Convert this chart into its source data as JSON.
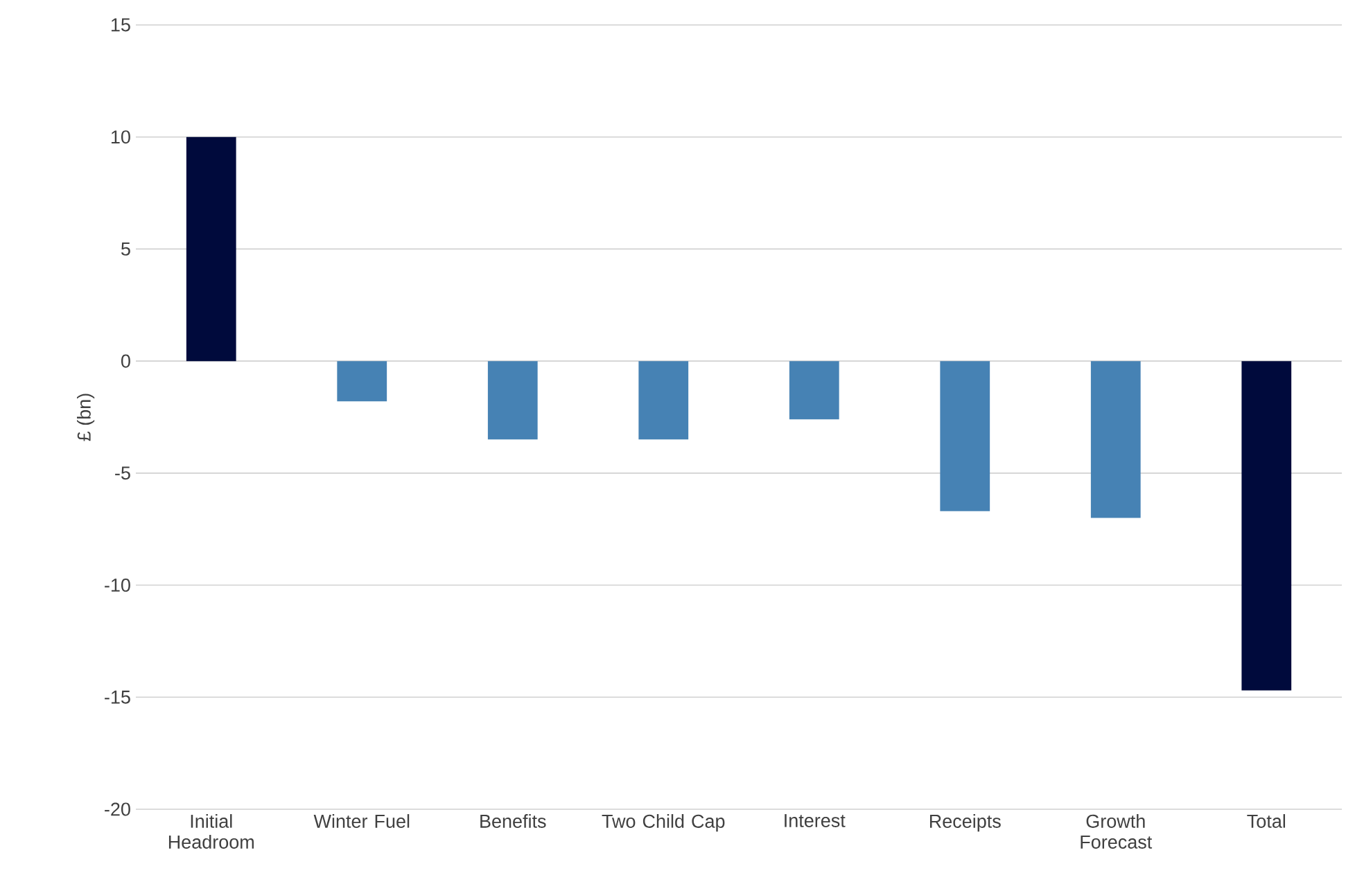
{
  "chart_data": {
    "type": "bar",
    "ylabel": "£ (bn)",
    "categories": [
      "Initial Headroom",
      "Winter Fuel",
      "Benefits",
      "Two Child Cap",
      "Interest",
      "Receipts",
      "Growth Forecast",
      "Total"
    ],
    "values": [
      10,
      -1.8,
      -3.5,
      -3.5,
      -2.6,
      -6.7,
      -7.0,
      -14.7
    ],
    "colors": [
      "#000a3c",
      "#4682b4",
      "#4682b4",
      "#4682b4",
      "#4682b4",
      "#4682b4",
      "#4682b4",
      "#000a3c"
    ],
    "ylim": [
      -20,
      15
    ],
    "yticks": [
      -20,
      -15,
      -10,
      -5,
      0,
      5,
      10,
      15
    ],
    "grid": "y"
  }
}
